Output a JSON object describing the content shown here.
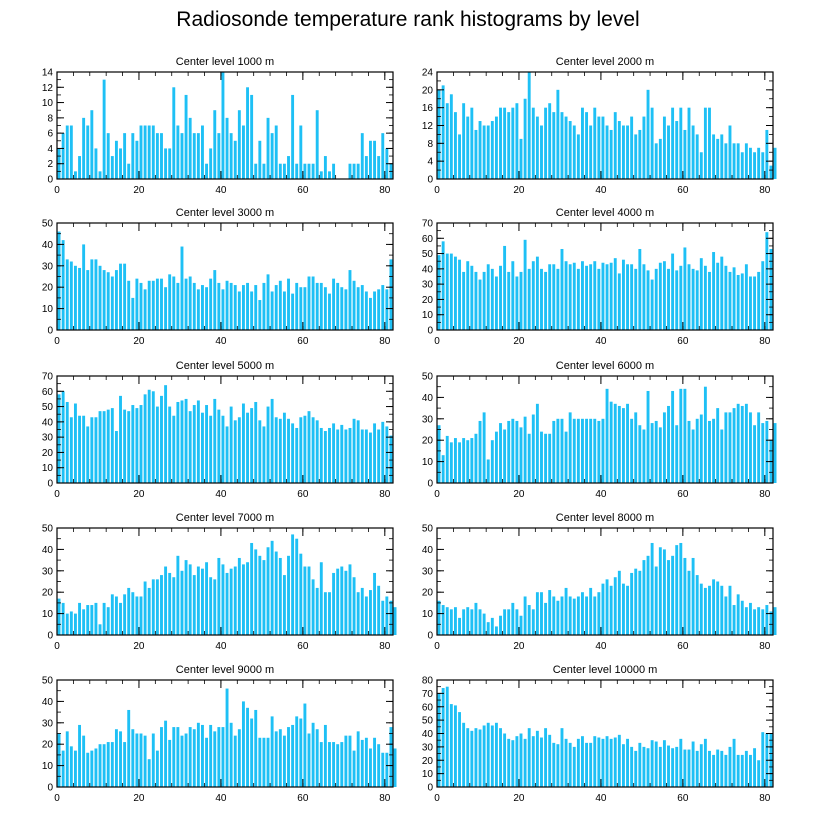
{
  "title": "Radiosonde temperature rank histograms by level",
  "bar_color": "#1ec0f5",
  "chart_data": [
    {
      "type": "bar",
      "title": "Center level 1000 m",
      "xlim": [
        0,
        82
      ],
      "ylim": [
        0,
        14
      ],
      "xticks": [
        0,
        20,
        40,
        60,
        80
      ],
      "yticks": [
        0,
        2,
        4,
        6,
        8,
        10,
        12,
        14
      ],
      "values": [
        4,
        6,
        7,
        7,
        1,
        3,
        8,
        7,
        9,
        4,
        1,
        13,
        6,
        3,
        5,
        4,
        6,
        2,
        6,
        5,
        7,
        7,
        7,
        7,
        6,
        6,
        4,
        4,
        12,
        7,
        6,
        11,
        8,
        6,
        6,
        7,
        2,
        4,
        9,
        6,
        14,
        8,
        6,
        5,
        9,
        7,
        12,
        11,
        2,
        5,
        2,
        8,
        6,
        7,
        2,
        2,
        3,
        11,
        2,
        7,
        2,
        2,
        2,
        9,
        1,
        3,
        1,
        2,
        0,
        0,
        0,
        2,
        2,
        2,
        6,
        3,
        5,
        5,
        3,
        6,
        4,
        2
      ]
    },
    {
      "type": "bar",
      "title": "Center level 2000 m",
      "xlim": [
        0,
        82
      ],
      "ylim": [
        0,
        24
      ],
      "xticks": [
        0,
        20,
        40,
        60,
        80
      ],
      "yticks": [
        0,
        4,
        8,
        12,
        16,
        20,
        24
      ],
      "values": [
        20,
        21,
        17,
        19,
        15,
        10,
        17,
        14,
        16,
        11,
        13,
        12,
        12,
        13,
        14,
        16,
        16,
        15,
        16,
        17,
        9,
        18,
        24,
        16,
        14,
        12,
        16,
        17,
        15,
        20,
        15,
        14,
        13,
        12,
        10,
        16,
        15,
        12,
        16,
        14,
        14,
        12,
        11,
        15,
        13,
        12,
        12,
        14,
        10,
        11,
        14,
        20,
        16,
        8,
        9,
        14,
        12,
        16,
        13,
        16,
        11,
        16,
        12,
        10,
        6,
        16,
        16,
        10,
        9,
        10,
        8,
        12,
        8,
        8,
        6,
        8,
        7,
        6,
        7,
        6,
        11,
        3,
        7
      ]
    },
    {
      "type": "bar",
      "title": "Center level 3000 m",
      "xlim": [
        0,
        82
      ],
      "ylim": [
        0,
        50
      ],
      "xticks": [
        0,
        20,
        40,
        60,
        80
      ],
      "yticks": [
        0,
        10,
        20,
        30,
        40,
        50
      ],
      "values": [
        46,
        42,
        33,
        32,
        30,
        29,
        40,
        28,
        33,
        33,
        30,
        28,
        27,
        25,
        28,
        31,
        31,
        23,
        15,
        24,
        22,
        19,
        23,
        23,
        24,
        24,
        20,
        26,
        25,
        22,
        39,
        24,
        25,
        22,
        19,
        21,
        20,
        24,
        28,
        22,
        19,
        23,
        22,
        21,
        18,
        21,
        22,
        18,
        21,
        14,
        22,
        26,
        18,
        21,
        23,
        18,
        24,
        17,
        22,
        20,
        20,
        25,
        25,
        22,
        22,
        20,
        17,
        24,
        22,
        20,
        19,
        28,
        23,
        20,
        21,
        18,
        15,
        18,
        19,
        21,
        19,
        33
      ]
    },
    {
      "type": "bar",
      "title": "Center level 4000 m",
      "xlim": [
        0,
        82
      ],
      "ylim": [
        0,
        70
      ],
      "xticks": [
        0,
        20,
        40,
        60,
        80
      ],
      "yticks": [
        0,
        10,
        20,
        30,
        40,
        50,
        60,
        70
      ],
      "values": [
        49,
        58,
        50,
        50,
        48,
        46,
        38,
        45,
        42,
        38,
        33,
        38,
        43,
        40,
        35,
        42,
        55,
        38,
        45,
        35,
        38,
        59,
        40,
        45,
        48,
        40,
        38,
        43,
        43,
        40,
        53,
        45,
        43,
        44,
        40,
        45,
        42,
        43,
        45,
        40,
        44,
        43,
        44,
        47,
        37,
        46,
        43,
        43,
        40,
        53,
        43,
        39,
        33,
        40,
        44,
        45,
        40,
        50,
        39,
        42,
        54,
        43,
        40,
        39,
        47,
        42,
        38,
        51,
        44,
        48,
        42,
        38,
        41,
        36,
        37,
        43,
        35,
        35,
        38,
        45,
        64,
        53
      ]
    },
    {
      "type": "bar",
      "title": "Center level 5000 m",
      "xlim": [
        0,
        82
      ],
      "ylim": [
        0,
        70
      ],
      "xticks": [
        0,
        20,
        40,
        60,
        80
      ],
      "yticks": [
        0,
        10,
        20,
        30,
        40,
        50,
        60,
        70
      ],
      "values": [
        58,
        60,
        53,
        43,
        52,
        44,
        44,
        37,
        43,
        43,
        47,
        47,
        48,
        49,
        34,
        57,
        48,
        47,
        51,
        49,
        51,
        58,
        61,
        60,
        50,
        57,
        64,
        50,
        44,
        53,
        54,
        55,
        47,
        51,
        54,
        46,
        51,
        44,
        55,
        48,
        44,
        37,
        50,
        41,
        43,
        52,
        46,
        49,
        53,
        41,
        37,
        50,
        55,
        43,
        42,
        46,
        42,
        39,
        36,
        43,
        44,
        47,
        43,
        41,
        36,
        34,
        36,
        39,
        35,
        38,
        35,
        36,
        42,
        41,
        35,
        35,
        33,
        39,
        35,
        40,
        37,
        31
      ]
    },
    {
      "type": "bar",
      "title": "Center level 6000 m",
      "xlim": [
        0,
        82
      ],
      "ylim": [
        0,
        50
      ],
      "xticks": [
        0,
        20,
        40,
        60,
        80
      ],
      "yticks": [
        0,
        10,
        20,
        30,
        40,
        50
      ],
      "values": [
        27,
        13,
        22,
        19,
        21,
        19,
        21,
        20,
        21,
        23,
        29,
        33,
        11,
        20,
        24,
        28,
        25,
        29,
        30,
        29,
        26,
        31,
        23,
        32,
        37,
        24,
        23,
        23,
        29,
        30,
        30,
        24,
        33,
        30,
        30,
        30,
        30,
        30,
        30,
        29,
        30,
        44,
        38,
        37,
        36,
        35,
        37,
        30,
        33,
        27,
        25,
        43,
        28,
        29,
        26,
        33,
        36,
        43,
        27,
        44,
        44,
        29,
        25,
        30,
        32,
        45,
        29,
        30,
        35,
        25,
        33,
        33,
        35,
        37,
        36,
        37,
        33,
        27,
        33,
        28,
        29,
        20,
        28
      ]
    },
    {
      "type": "bar",
      "title": "Center level 7000 m",
      "xlim": [
        0,
        82
      ],
      "ylim": [
        0,
        50
      ],
      "xticks": [
        0,
        20,
        40,
        60,
        80
      ],
      "yticks": [
        0,
        10,
        20,
        30,
        40,
        50
      ],
      "values": [
        17,
        15,
        10,
        11,
        10,
        15,
        12,
        14,
        14,
        15,
        5,
        15,
        13,
        19,
        18,
        15,
        19,
        22,
        20,
        18,
        18,
        25,
        22,
        26,
        26,
        28,
        32,
        29,
        27,
        37,
        30,
        35,
        33,
        28,
        32,
        31,
        34,
        27,
        26,
        36,
        33,
        29,
        31,
        32,
        36,
        33,
        34,
        43,
        40,
        37,
        35,
        41,
        44,
        39,
        36,
        28,
        37,
        47,
        45,
        38,
        32,
        32,
        26,
        22,
        34,
        20,
        20,
        29,
        31,
        32,
        30,
        33,
        27,
        20,
        22,
        18,
        21,
        29,
        23,
        16,
        18,
        16,
        13
      ]
    },
    {
      "type": "bar",
      "title": "Center level 8000 m",
      "xlim": [
        0,
        82
      ],
      "ylim": [
        0,
        50
      ],
      "xticks": [
        0,
        20,
        40,
        60,
        80
      ],
      "yticks": [
        0,
        10,
        20,
        30,
        40,
        50
      ],
      "values": [
        16,
        14,
        13,
        12,
        13,
        8,
        12,
        13,
        12,
        15,
        12,
        10,
        6,
        8,
        4,
        9,
        12,
        12,
        15,
        12,
        9,
        18,
        14,
        12,
        20,
        20,
        15,
        21,
        18,
        16,
        18,
        22,
        18,
        17,
        18,
        20,
        18,
        22,
        18,
        20,
        24,
        26,
        23,
        27,
        30,
        24,
        23,
        29,
        31,
        30,
        35,
        37,
        43,
        32,
        41,
        40,
        35,
        37,
        42,
        43,
        36,
        30,
        36,
        28,
        24,
        22,
        23,
        26,
        25,
        23,
        18,
        23,
        14,
        19,
        16,
        13,
        15,
        12,
        13,
        12,
        14,
        11,
        13
      ]
    },
    {
      "type": "bar",
      "title": "Center level 9000 m",
      "xlim": [
        0,
        82
      ],
      "ylim": [
        0,
        50
      ],
      "xticks": [
        0,
        20,
        40,
        60,
        80
      ],
      "yticks": [
        0,
        10,
        20,
        30,
        40,
        50
      ],
      "values": [
        25,
        17,
        26,
        19,
        17,
        29,
        24,
        16,
        17,
        18,
        20,
        20,
        21,
        21,
        27,
        26,
        21,
        36,
        27,
        25,
        25,
        24,
        13,
        25,
        17,
        28,
        31,
        22,
        28,
        28,
        24,
        25,
        28,
        27,
        30,
        29,
        23,
        29,
        26,
        28,
        28,
        46,
        30,
        24,
        27,
        40,
        37,
        32,
        36,
        23,
        23,
        23,
        33,
        26,
        27,
        24,
        28,
        29,
        33,
        32,
        39,
        25,
        30,
        27,
        21,
        29,
        21,
        21,
        20,
        21,
        24,
        24,
        17,
        26,
        22,
        23,
        18,
        23,
        20,
        16,
        16,
        28,
        18
      ]
    },
    {
      "type": "bar",
      "title": "Center level 10000 m",
      "xlim": [
        0,
        82
      ],
      "ylim": [
        0,
        80
      ],
      "xticks": [
        0,
        20,
        40,
        60,
        80
      ],
      "yticks": [
        0,
        10,
        20,
        30,
        40,
        50,
        60,
        70,
        80
      ],
      "values": [
        70,
        74,
        75,
        62,
        61,
        56,
        48,
        44,
        42,
        44,
        43,
        46,
        48,
        46,
        48,
        44,
        40,
        36,
        35,
        38,
        40,
        36,
        44,
        38,
        42,
        37,
        44,
        39,
        33,
        32,
        44,
        36,
        33,
        30,
        36,
        38,
        33,
        33,
        38,
        37,
        36,
        38,
        36,
        37,
        39,
        32,
        36,
        30,
        27,
        33,
        30,
        29,
        35,
        34,
        30,
        35,
        31,
        29,
        30,
        36,
        28,
        28,
        34,
        27,
        32,
        36,
        27,
        24,
        28,
        27,
        24,
        30,
        36,
        24,
        24,
        27,
        24,
        29,
        20,
        41,
        40,
        40
      ]
    }
  ]
}
